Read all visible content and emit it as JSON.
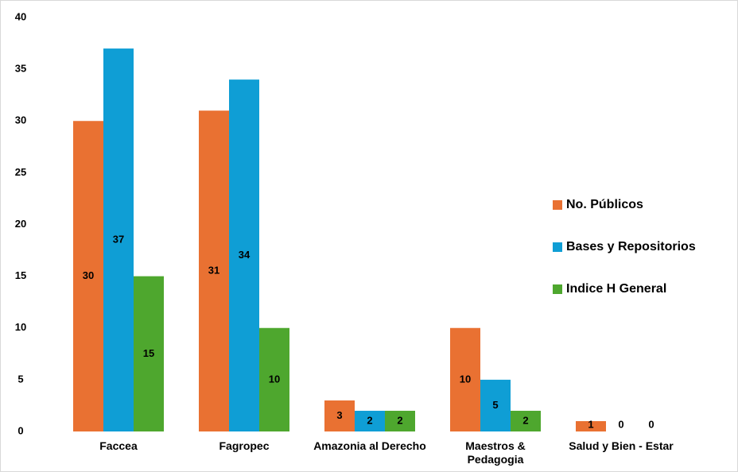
{
  "chart_data": {
    "type": "bar",
    "categories": [
      "Faccea",
      "Fagropec",
      "Amazonia al Derecho",
      "Maestros & Pedagogia",
      "Salud y Bien - Estar"
    ],
    "series": [
      {
        "name": "No. Públicos",
        "color": "#e97132",
        "values": [
          30,
          31,
          3,
          10,
          1
        ]
      },
      {
        "name": "Bases y Repositorios",
        "color": "#0f9ed5",
        "values": [
          37,
          34,
          2,
          5,
          0
        ]
      },
      {
        "name": "Indice H General",
        "color": "#4ea72e",
        "values": [
          15,
          10,
          2,
          2,
          0
        ]
      }
    ],
    "ylim": [
      0,
      40
    ],
    "yticks": [
      0,
      5,
      10,
      15,
      20,
      25,
      30,
      35,
      40
    ],
    "grid": false,
    "legend": "right"
  }
}
